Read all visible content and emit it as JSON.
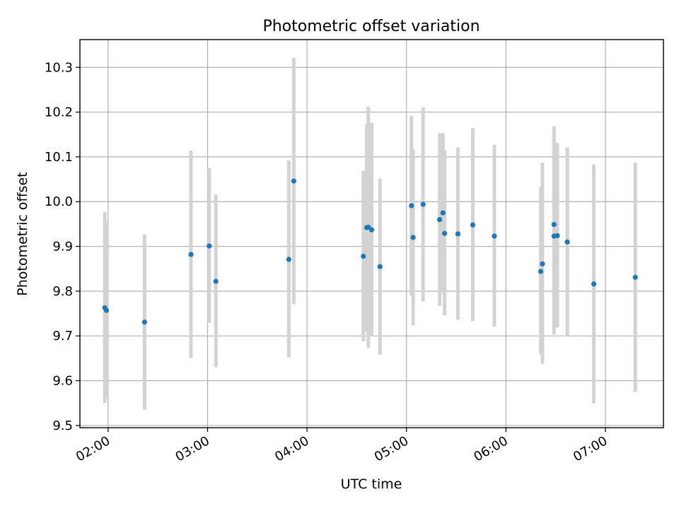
{
  "chart_data": {
    "type": "scatter",
    "title": "Photometric offset variation",
    "xlabel": "UTC time",
    "ylabel": "Photometric offset",
    "xlim": [
      "01:43",
      "07:35"
    ],
    "ylim": [
      9.495,
      10.362
    ],
    "x_ticks": [
      "02:00",
      "03:00",
      "04:00",
      "05:00",
      "06:00",
      "07:00"
    ],
    "y_ticks": [
      "9.5",
      "9.6",
      "9.7",
      "9.8",
      "9.9",
      "10.0",
      "10.1",
      "10.2",
      "10.3"
    ],
    "grid": true,
    "series": [
      {
        "points": [
          {
            "x": "01:58",
            "y": 9.763,
            "low": 9.55,
            "high": 9.977
          },
          {
            "x": "01:59",
            "y": 9.757,
            "low": 9.56,
            "high": 9.955
          },
          {
            "x": "02:22",
            "y": 9.731,
            "low": 9.535,
            "high": 9.927
          },
          {
            "x": "02:50",
            "y": 9.882,
            "low": 9.651,
            "high": 10.114
          },
          {
            "x": "03:01",
            "y": 9.901,
            "low": 9.729,
            "high": 10.075
          },
          {
            "x": "03:05",
            "y": 9.822,
            "low": 9.63,
            "high": 10.016
          },
          {
            "x": "03:49",
            "y": 9.871,
            "low": 9.652,
            "high": 10.092
          },
          {
            "x": "03:52",
            "y": 10.046,
            "low": 9.771,
            "high": 10.321
          },
          {
            "x": "04:34",
            "y": 9.878,
            "low": 9.688,
            "high": 10.069
          },
          {
            "x": "04:36",
            "y": 9.942,
            "low": 9.71,
            "high": 10.174
          },
          {
            "x": "04:37",
            "y": 9.943,
            "low": 9.674,
            "high": 10.212
          },
          {
            "x": "04:39",
            "y": 9.937,
            "low": 9.699,
            "high": 10.176
          },
          {
            "x": "04:44",
            "y": 9.855,
            "low": 9.658,
            "high": 10.052
          },
          {
            "x": "05:03",
            "y": 9.991,
            "low": 9.79,
            "high": 10.192
          },
          {
            "x": "05:04",
            "y": 9.92,
            "low": 9.723,
            "high": 10.117
          },
          {
            "x": "05:10",
            "y": 9.994,
            "low": 9.777,
            "high": 10.211
          },
          {
            "x": "05:20",
            "y": 9.96,
            "low": 9.767,
            "high": 10.153
          },
          {
            "x": "05:22",
            "y": 9.975,
            "low": 9.797,
            "high": 10.153
          },
          {
            "x": "05:23",
            "y": 9.929,
            "low": 9.746,
            "high": 10.114
          },
          {
            "x": "05:31",
            "y": 9.928,
            "low": 9.736,
            "high": 10.121
          },
          {
            "x": "05:40",
            "y": 9.948,
            "low": 9.733,
            "high": 10.164
          },
          {
            "x": "05:53",
            "y": 9.923,
            "low": 9.721,
            "high": 10.127
          },
          {
            "x": "06:21",
            "y": 9.844,
            "low": 9.658,
            "high": 10.032
          },
          {
            "x": "06:22",
            "y": 9.861,
            "low": 9.638,
            "high": 10.087
          },
          {
            "x": "06:29",
            "y": 9.949,
            "low": 9.73,
            "high": 10.168
          },
          {
            "x": "06:29",
            "y": 9.923,
            "low": 9.703,
            "high": 10.148
          },
          {
            "x": "06:31",
            "y": 9.924,
            "low": 9.719,
            "high": 10.131
          },
          {
            "x": "06:37",
            "y": 9.91,
            "low": 9.7,
            "high": 10.121
          },
          {
            "x": "06:53",
            "y": 9.816,
            "low": 9.549,
            "high": 10.083
          },
          {
            "x": "07:18",
            "y": 9.831,
            "low": 9.575,
            "high": 10.087
          }
        ],
        "marker_color": "#1f77b4",
        "errorbar_color": "#d3d3d3"
      }
    ]
  }
}
